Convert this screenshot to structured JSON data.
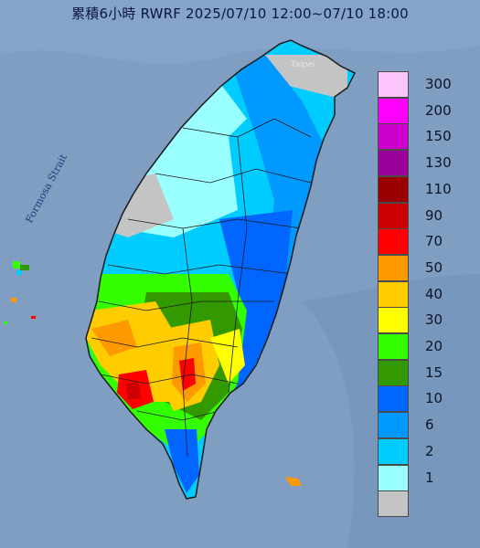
{
  "header": {
    "title": "累積6小時 RWRF 2025/07/10 12:00~07/10 18:00"
  },
  "map": {
    "strait_label": "Formosa Strait",
    "city_label": "Taipei",
    "ocean_color": "#7f9ec2",
    "land_outline_color": "#1a1a1a"
  },
  "legend": {
    "unit_values": [
      {
        "label": "300",
        "color": "#ffc6fe"
      },
      {
        "label": "200",
        "color": "#ff00ff"
      },
      {
        "label": "150",
        "color": "#cc00cc"
      },
      {
        "label": "130",
        "color": "#990099"
      },
      {
        "label": "110",
        "color": "#990000"
      },
      {
        "label": "90",
        "color": "#cc0000"
      },
      {
        "label": "70",
        "color": "#ff0000"
      },
      {
        "label": "50",
        "color": "#ff9900"
      },
      {
        "label": "40",
        "color": "#ffcc00"
      },
      {
        "label": "30",
        "color": "#ffff00"
      },
      {
        "label": "20",
        "color": "#33ff00"
      },
      {
        "label": "15",
        "color": "#339900"
      },
      {
        "label": "10",
        "color": "#0066ff"
      },
      {
        "label": "6",
        "color": "#0099ff"
      },
      {
        "label": "2",
        "color": "#00ccff"
      },
      {
        "label": "1",
        "color": "#99ffff"
      },
      {
        "label": "",
        "color": "#c4c4c4"
      }
    ]
  }
}
